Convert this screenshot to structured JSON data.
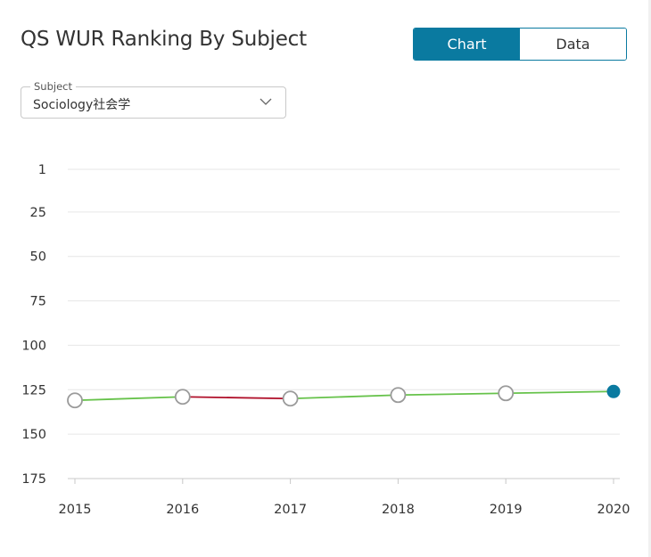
{
  "header": {
    "title": "QS WUR Ranking By Subject"
  },
  "view_toggle": {
    "chart_label": "Chart",
    "data_label": "Data",
    "selected": "Chart"
  },
  "subject_select": {
    "legend": "Subject",
    "value": "Sociology社会学"
  },
  "colors": {
    "accent": "#0a7aa0",
    "line_up": "#66c24a",
    "line_down": "#b0102a",
    "marker_border": "#9a9a9a",
    "grid": "#e6e6e6"
  },
  "chart_data": {
    "type": "line",
    "x": [
      "2015",
      "2016",
      "2017",
      "2018",
      "2019",
      "2020"
    ],
    "y": [
      131,
      129,
      130,
      128,
      127,
      126
    ],
    "y_ticks": [
      "1",
      "25",
      "50",
      "75",
      "100",
      "125",
      "150",
      "175"
    ],
    "y_tick_values": [
      1,
      25,
      50,
      75,
      100,
      125,
      150,
      175
    ],
    "ylim": [
      1,
      175
    ],
    "y_reversed": true,
    "grid": true,
    "highlighted_point": "2020"
  }
}
